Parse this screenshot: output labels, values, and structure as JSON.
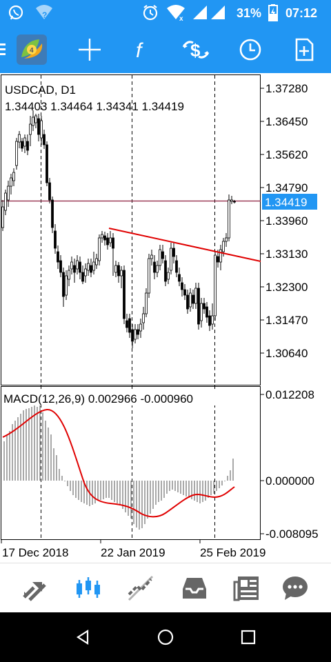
{
  "status_bar": {
    "battery_percent": "31%",
    "time": "07:12",
    "icons": [
      "whatsapp-icon",
      "wifi-question-icon",
      "alarm-icon",
      "wifi-signal-icon",
      "cell-signal-icon",
      "battery-charging-icon"
    ]
  },
  "toolbar": {
    "items": [
      "menu-icon",
      "metatrader-logo",
      "crosshair-icon",
      "indicators-icon",
      "trade-icon",
      "timeframe-icon",
      "new-order-icon"
    ],
    "accent": "#2196F3"
  },
  "chart": {
    "symbol_line": "USDCAD, D1",
    "ohlc_line": "1.34403 1.34464 1.34341 1.34419",
    "price_ticks": [
      "1.37280",
      "1.36450",
      "1.35620",
      "1.34790",
      "1.33960",
      "1.33130",
      "1.32300",
      "1.31470",
      "1.30640"
    ],
    "current_price": "1.34419",
    "macd_label": "MACD(12,26,9) 0.002966 -0.000960",
    "macd_ticks": [
      "0.012208",
      "0.000000",
      "-0.008095"
    ],
    "date_labels": [
      "17 Dec 2018",
      "22 Jan 2019",
      "25 Feb 2019"
    ]
  },
  "bottom_nav": {
    "items": [
      "quotes-icon",
      "chart-icon",
      "trade-icon",
      "history-icon",
      "news-icon",
      "chat-icon"
    ],
    "active": "chart-icon"
  },
  "system_nav": {
    "items": [
      "back-button",
      "home-button",
      "recents-button"
    ]
  }
}
